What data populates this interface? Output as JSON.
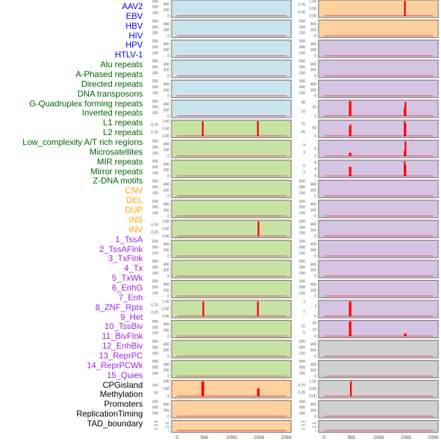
{
  "chart_data": {
    "type": "bar",
    "title": "",
    "xlabel": "",
    "ylabel": "",
    "x_range_kb": [
      0,
      20
    ],
    "x_ticks": [
      "0",
      "5kb",
      "10kb",
      "15kb",
      "20kb"
    ],
    "x_tick_values": [
      0,
      5,
      10,
      15,
      20
    ],
    "group_colors": {
      "virus": {
        "label": "#0000ff",
        "panel": "#c8e4ec"
      },
      "repeat": {
        "label": "#006400",
        "panel": "#c8e2a4"
      },
      "sv": {
        "label": "#ffa500",
        "panel": "#fdd09e"
      },
      "chromhmm": {
        "label": "#a020f0",
        "panel": "#d6c4e3"
      },
      "other": {
        "label": "#000000",
        "panel": "#d0d0d0"
      }
    },
    "spike_color": "#ff0000",
    "baseline_color": "#e06070",
    "tracks": [
      {
        "name": "AAV2",
        "group": "virus",
        "ylim": [
          0,
          500
        ],
        "ticks": [
          "0",
          "100",
          "200",
          "300",
          "400",
          "500"
        ],
        "spikes": []
      },
      {
        "name": "EBV",
        "group": "virus",
        "ylim": [
          0,
          500
        ],
        "ticks": [
          "0",
          "100",
          "200",
          "300",
          "400",
          "500"
        ],
        "spikes": []
      },
      {
        "name": "HBV",
        "group": "virus",
        "ylim": [
          0,
          500
        ],
        "ticks": [
          "0",
          "100",
          "200",
          "300",
          "400",
          "500"
        ],
        "spikes": []
      },
      {
        "name": "HIV",
        "group": "virus",
        "ylim": [
          0,
          500
        ],
        "ticks": [
          "0",
          "100",
          "200",
          "300",
          "400",
          "500"
        ],
        "spikes": []
      },
      {
        "name": "HPV",
        "group": "virus",
        "ylim": [
          0,
          500
        ],
        "ticks": [
          "0",
          "100",
          "200",
          "300",
          "400",
          "500"
        ],
        "spikes": []
      },
      {
        "name": "HTLV-1",
        "group": "virus",
        "ylim": [
          0,
          500
        ],
        "ticks": [
          "0",
          "100",
          "200",
          "300",
          "400",
          "500"
        ],
        "spikes": []
      },
      {
        "name": "Alu repeats",
        "group": "repeat",
        "ylim": [
          0,
          1
        ],
        "ticks": [
          "0.00",
          "0.25",
          "0.50",
          "0.75",
          "1.00"
        ],
        "spikes": [
          [
            4.7,
            1
          ],
          [
            14.8,
            1
          ]
        ]
      },
      {
        "name": "A-Phased repeats",
        "group": "repeat",
        "ylim": [
          0,
          500
        ],
        "ticks": [
          "0",
          "100",
          "200",
          "300",
          "400",
          "500"
        ],
        "spikes": []
      },
      {
        "name": "Directed repeats",
        "group": "repeat",
        "ylim": [
          0,
          500
        ],
        "ticks": [
          "0",
          "100",
          "200",
          "300",
          "400",
          "500"
        ],
        "spikes": []
      },
      {
        "name": "DNA transposons",
        "group": "repeat",
        "ylim": [
          0,
          500
        ],
        "ticks": [
          "0",
          "100",
          "200",
          "300",
          "400",
          "500"
        ],
        "spikes": []
      },
      {
        "name": "G-Quadruplex forming repeats",
        "group": "repeat",
        "ylim": [
          0,
          500
        ],
        "ticks": [
          "0",
          "100",
          "200",
          "300",
          "400",
          "500"
        ],
        "spikes": []
      },
      {
        "name": "Inverted repeats",
        "group": "repeat",
        "ylim": [
          0,
          1
        ],
        "ticks": [
          "0.00",
          "0.25",
          "0.50",
          "0.75",
          "1.00"
        ],
        "spikes": [
          [
            14.9,
            1
          ]
        ]
      },
      {
        "name": "L1 repeats",
        "group": "repeat",
        "ylim": [
          0,
          500
        ],
        "ticks": [
          "0",
          "100",
          "200",
          "300",
          "400",
          "500"
        ],
        "spikes": []
      },
      {
        "name": "L2 repeats",
        "group": "repeat",
        "ylim": [
          0,
          500
        ],
        "ticks": [
          "0",
          "100",
          "200",
          "300",
          "400",
          "500"
        ],
        "spikes": []
      },
      {
        "name": "Low_complexity A/T rich regions",
        "group": "repeat",
        "ylim": [
          0,
          500
        ],
        "ticks": [
          "0",
          "100",
          "200",
          "300",
          "400",
          "500"
        ],
        "spikes": []
      },
      {
        "name": "Microsatellites",
        "group": "repeat",
        "ylim": [
          0,
          1
        ],
        "ticks": [
          "0.00",
          "0.25",
          "0.50",
          "0.75",
          "1.00"
        ],
        "spikes": [
          [
            4.8,
            1
          ],
          [
            14.8,
            1
          ]
        ]
      },
      {
        "name": "MIR repeats",
        "group": "repeat",
        "ylim": [
          0,
          500
        ],
        "ticks": [
          "0",
          "100",
          "200",
          "300",
          "400",
          "500"
        ],
        "spikes": []
      },
      {
        "name": "Mirror repeats",
        "group": "repeat",
        "ylim": [
          0,
          500
        ],
        "ticks": [
          "0",
          "100",
          "200",
          "300",
          "400",
          "500"
        ],
        "spikes": []
      },
      {
        "name": "Z-DNA motifs",
        "group": "repeat",
        "ylim": [
          0,
          500
        ],
        "ticks": [
          "0",
          "100",
          "200",
          "300",
          "400",
          "500"
        ],
        "spikes": []
      },
      {
        "name": "CNV",
        "group": "sv",
        "ylim": [
          0,
          200
        ],
        "ticks": [
          "0",
          "50",
          "100",
          "150",
          "200"
        ],
        "spikes": [
          [
            4.6,
            200
          ],
          [
            4.8,
            200
          ],
          [
            14.8,
            105
          ],
          [
            14.95,
            105
          ]
        ]
      },
      {
        "name": "DEL",
        "group": "sv",
        "ylim": [
          0,
          500
        ],
        "ticks": [
          "0",
          "100",
          "200",
          "300",
          "400",
          "500"
        ],
        "spikes": []
      },
      {
        "name": "DUP",
        "group": "sv",
        "ylim": [
          0,
          500
        ],
        "ticks": [
          "0",
          "100",
          "200",
          "300",
          "400",
          "500"
        ],
        "spikes": []
      },
      {
        "name": "INS",
        "group": "sv",
        "ylim": [
          0,
          1
        ],
        "ticks": [
          "0.00",
          "0.25",
          "0.50",
          "0.75",
          "1.00"
        ],
        "spikes": [
          [
            14.8,
            1
          ]
        ]
      },
      {
        "name": "INV",
        "group": "sv",
        "ylim": [
          0,
          500
        ],
        "ticks": [
          "0",
          "100",
          "200",
          "300",
          "400",
          "500"
        ],
        "spikes": []
      },
      {
        "name": "1_TssA",
        "group": "chromhmm",
        "ylim": [
          0,
          500
        ],
        "ticks": [
          "0",
          "100",
          "200",
          "300",
          "400",
          "500"
        ],
        "spikes": []
      },
      {
        "name": "2_TssAFlnk",
        "group": "chromhmm",
        "ylim": [
          0,
          500
        ],
        "ticks": [
          "0",
          "100",
          "200",
          "300",
          "400",
          "500"
        ],
        "spikes": []
      },
      {
        "name": "3_TxFlnk",
        "group": "chromhmm",
        "ylim": [
          0,
          500
        ],
        "ticks": [
          "0",
          "100",
          "200",
          "300",
          "400",
          "500"
        ],
        "spikes": []
      },
      {
        "name": "4_Tx",
        "group": "chromhmm",
        "ylim": [
          0,
          33
        ],
        "ticks": [
          "0",
          "10",
          "20",
          "30"
        ],
        "spikes": [
          [
            4.7,
            33
          ],
          [
            4.85,
            33
          ],
          [
            14.75,
            19
          ],
          [
            14.9,
            31
          ]
        ]
      },
      {
        "name": "5_TxWk",
        "group": "chromhmm",
        "ylim": [
          0,
          90
        ],
        "ticks": [
          "0",
          "25",
          "50",
          "75"
        ],
        "spikes": [
          [
            4.7,
            60
          ],
          [
            4.85,
            70
          ],
          [
            14.75,
            90
          ],
          [
            14.9,
            75
          ]
        ]
      },
      {
        "name": "6_EnhG",
        "group": "chromhmm",
        "ylim": [
          0,
          12
        ],
        "ticks": [
          "0",
          "3",
          "6",
          "9"
        ],
        "spikes": [
          [
            4.7,
            2.5
          ],
          [
            4.85,
            2.5
          ],
          [
            14.75,
            4
          ],
          [
            14.9,
            12
          ]
        ]
      },
      {
        "name": "7_Enh",
        "group": "chromhmm",
        "ylim": [
          0,
          8.5
        ],
        "ticks": [
          "0",
          "2",
          "4",
          "6",
          "8"
        ],
        "spikes": [
          [
            4.7,
            5.3
          ],
          [
            4.85,
            5.3
          ],
          [
            14.75,
            8.5
          ],
          [
            14.9,
            6.3
          ]
        ]
      },
      {
        "name": "8_ZNF_Rpts",
        "group": "chromhmm",
        "ylim": [
          0,
          500
        ],
        "ticks": [
          "0",
          "100",
          "200",
          "300",
          "400",
          "500"
        ],
        "spikes": []
      },
      {
        "name": "9_Het",
        "group": "chromhmm",
        "ylim": [
          0,
          500
        ],
        "ticks": [
          "0",
          "100",
          "200",
          "300",
          "400",
          "500"
        ],
        "spikes": []
      },
      {
        "name": "10_TssBiv",
        "group": "chromhmm",
        "ylim": [
          0,
          500
        ],
        "ticks": [
          "0",
          "100",
          "200",
          "300",
          "400",
          "500"
        ],
        "spikes": []
      },
      {
        "name": "11_BivFlnk",
        "group": "chromhmm",
        "ylim": [
          0,
          500
        ],
        "ticks": [
          "0",
          "100",
          "200",
          "300",
          "400",
          "500"
        ],
        "spikes": []
      },
      {
        "name": "12_EnhBiv",
        "group": "chromhmm",
        "ylim": [
          0,
          500
        ],
        "ticks": [
          "0",
          "100",
          "200",
          "300",
          "400",
          "500"
        ],
        "spikes": []
      },
      {
        "name": "13_ReprPC",
        "group": "chromhmm",
        "ylim": [
          0,
          500
        ],
        "ticks": [
          "0",
          "100",
          "200",
          "300",
          "400",
          "500"
        ],
        "spikes": []
      },
      {
        "name": "14_ReprPCWk",
        "group": "chromhmm",
        "ylim": [
          0,
          3
        ],
        "ticks": [
          "0",
          "1",
          "2",
          "3"
        ],
        "spikes": [
          [
            4.7,
            3
          ],
          [
            4.85,
            3
          ]
        ]
      },
      {
        "name": "15_Quies",
        "group": "chromhmm",
        "ylim": [
          0,
          22
        ],
        "ticks": [
          "0",
          "5",
          "10",
          "15",
          "20"
        ],
        "spikes": [
          [
            4.7,
            22
          ],
          [
            4.85,
            22
          ],
          [
            14.8,
            4
          ],
          [
            14.95,
            4
          ]
        ]
      },
      {
        "name": "CPGisland",
        "group": "other",
        "ylim": [
          0,
          500
        ],
        "ticks": [
          "0",
          "100",
          "200",
          "300",
          "400",
          "500"
        ],
        "spikes": []
      },
      {
        "name": "Methylation",
        "group": "other",
        "ylim": [
          0,
          500
        ],
        "ticks": [
          "0",
          "100",
          "200",
          "300",
          "400",
          "500"
        ],
        "spikes": []
      },
      {
        "name": "Promoters",
        "group": "other",
        "ylim": [
          0,
          1
        ],
        "ticks": [
          "0.00",
          "0.25",
          "0.50",
          "0.75",
          "1.00"
        ],
        "spikes": [
          [
            4.9,
            1
          ]
        ]
      },
      {
        "name": "ReplicationTiming",
        "group": "other",
        "ylim": [
          0,
          500
        ],
        "ticks": [
          "0",
          "100",
          "200",
          "300",
          "400",
          "500"
        ],
        "spikes": []
      },
      {
        "name": "TAD_boundary",
        "group": "other",
        "ylim": [
          0,
          500
        ],
        "ticks": [
          "0",
          "100",
          "200",
          "300",
          "400",
          "500"
        ],
        "spikes": []
      }
    ]
  }
}
